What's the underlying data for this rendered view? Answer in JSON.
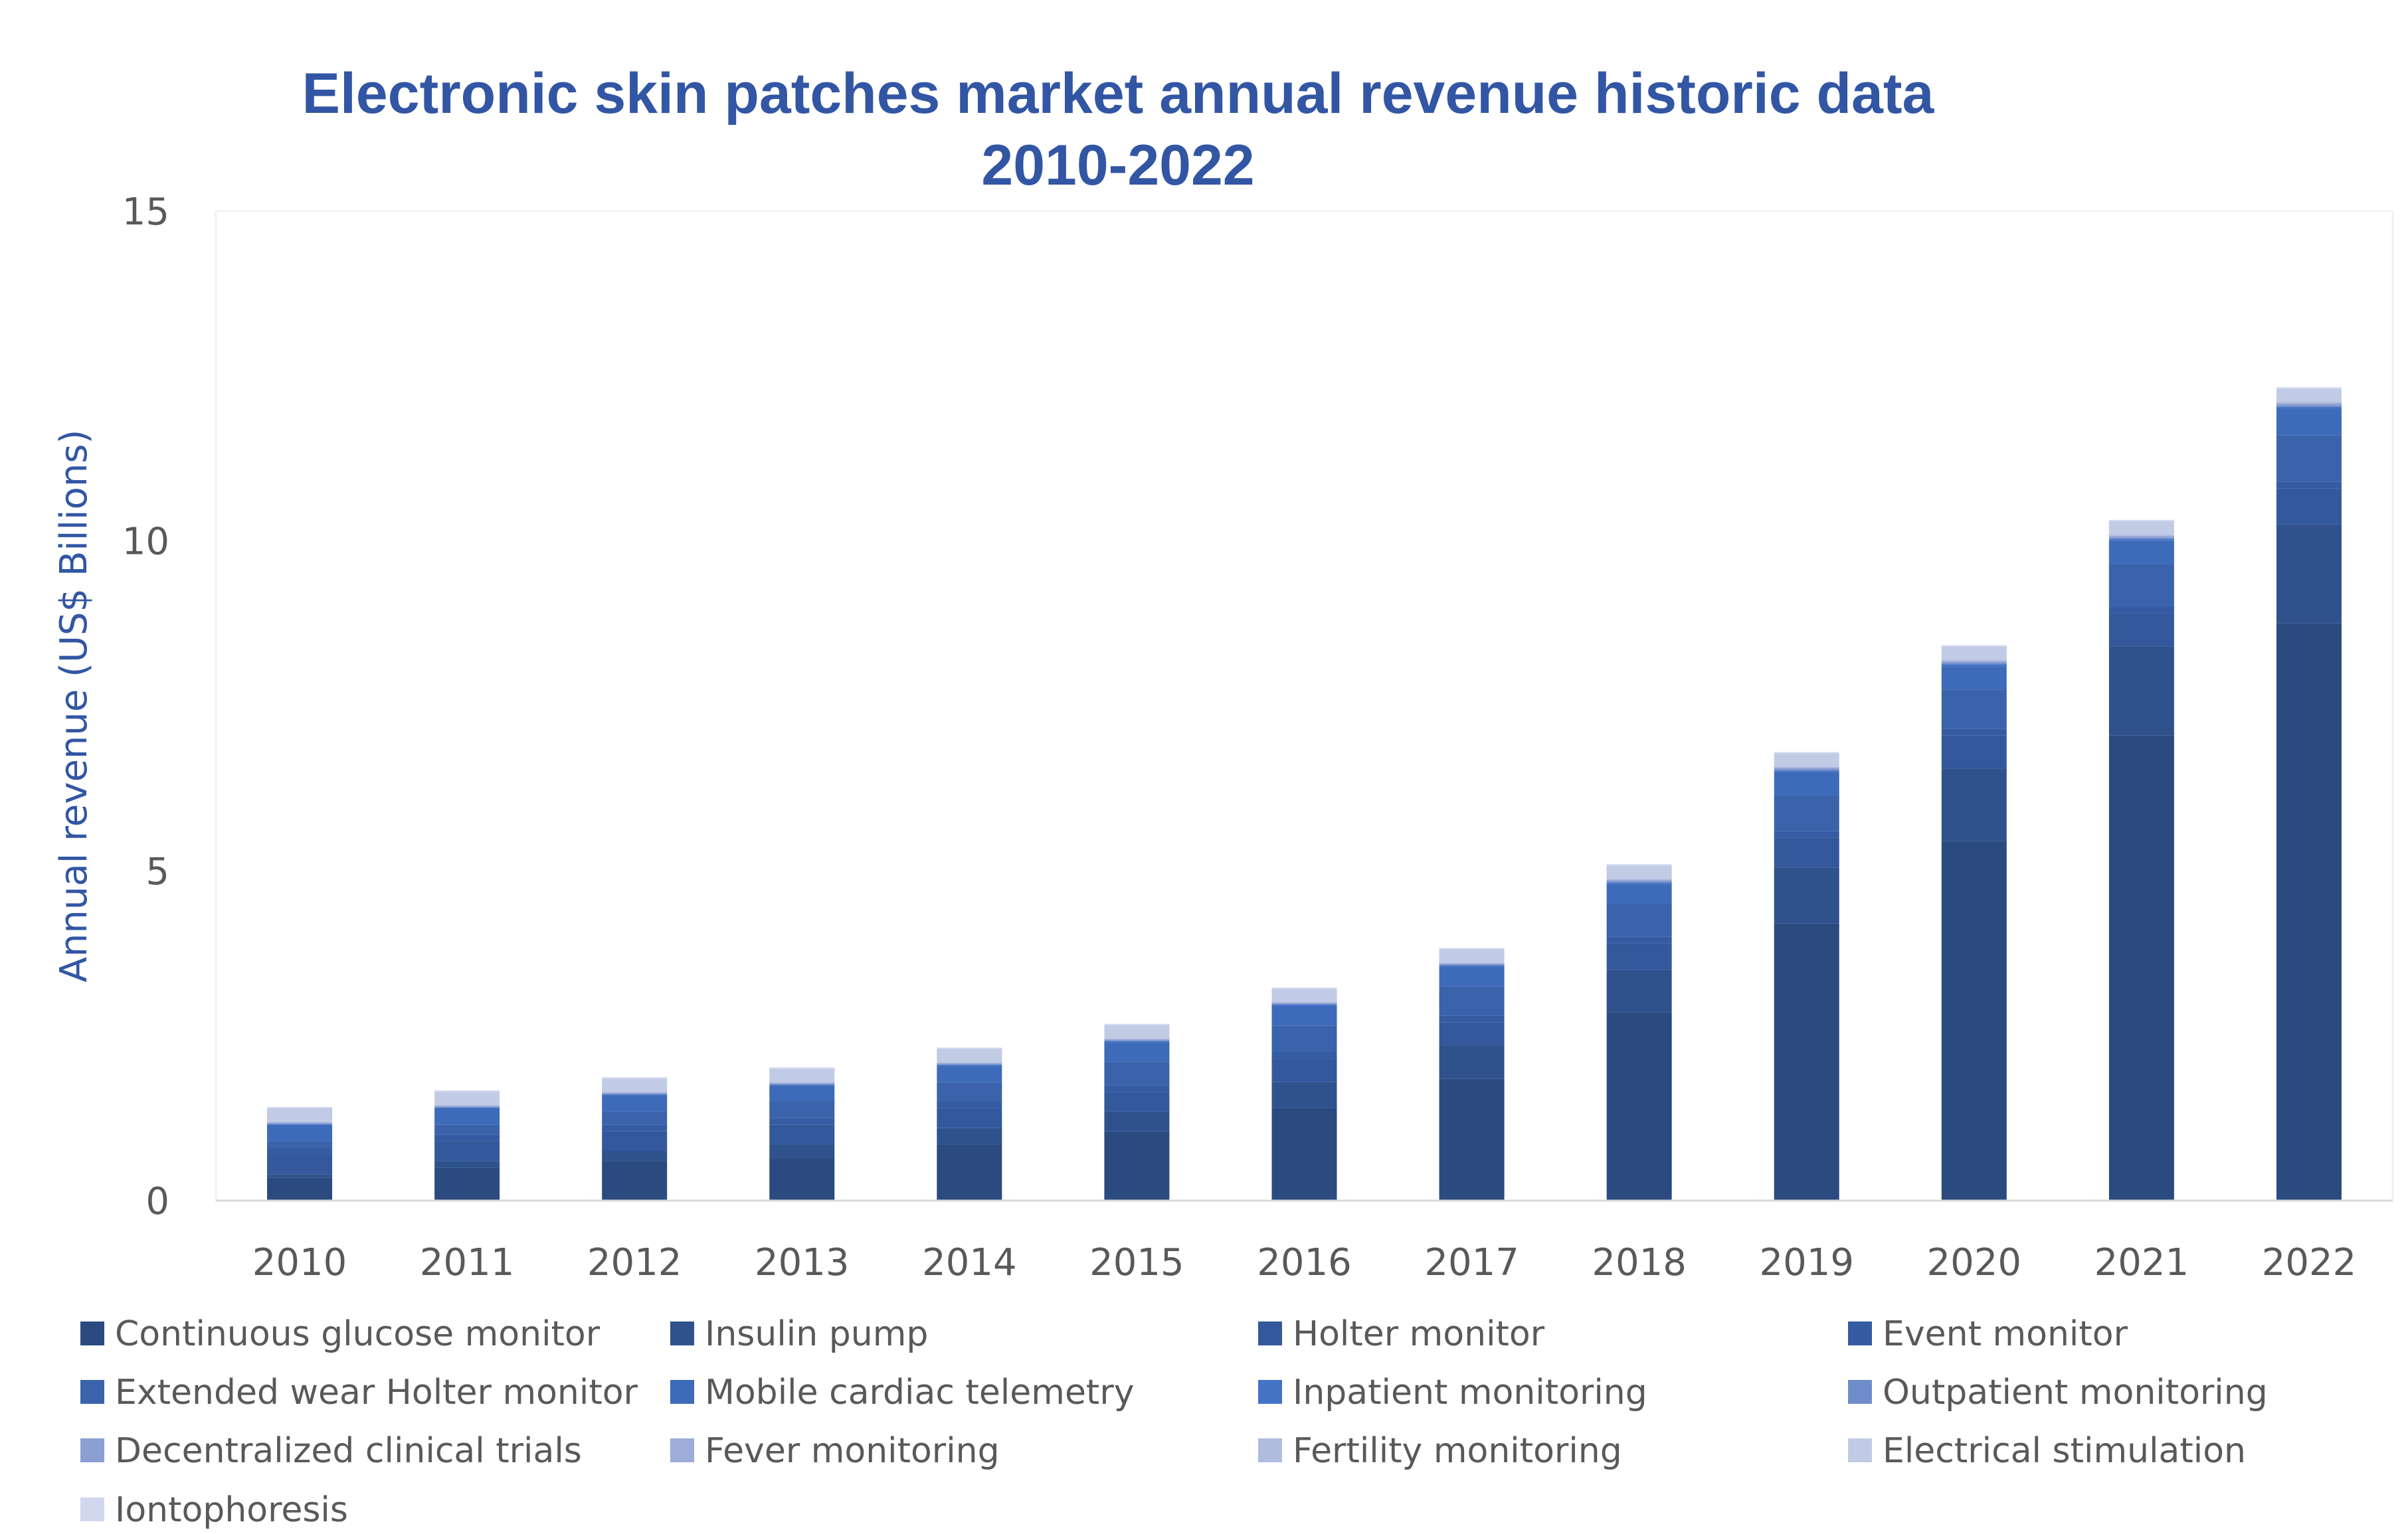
{
  "chart_data": {
    "type": "bar",
    "stacked": true,
    "title": [
      "Electronic skin patches market annual revenue historic data",
      "2010-2022"
    ],
    "xlabel": "",
    "ylabel": "Annual revenue (US$ Billions)",
    "ylim": [
      0,
      15
    ],
    "yticks": [
      "0",
      "5",
      "10",
      "15"
    ],
    "ytick_values": [
      0,
      5,
      10,
      15
    ],
    "grid": false,
    "legend_position": "bottom",
    "categories": [
      "2010",
      "2011",
      "2012",
      "2013",
      "2014",
      "2015",
      "2016",
      "2017",
      "2018",
      "2019",
      "2020",
      "2021",
      "2022"
    ],
    "series": [
      {
        "name": "Continuous glucose monitor",
        "color": "#2b4a80",
        "values": [
          0.35,
          0.5,
          0.6,
          0.65,
          0.85,
          1.05,
          1.4,
          1.85,
          2.85,
          4.2,
          5.45,
          7.05,
          8.75
        ]
      },
      {
        "name": "Insulin pump",
        "color": "#2f528d",
        "values": [
          0.05,
          0.1,
          0.15,
          0.2,
          0.25,
          0.3,
          0.4,
          0.5,
          0.65,
          0.85,
          1.1,
          1.35,
          1.5
        ]
      },
      {
        "name": "Holter monitor",
        "color": "#33589c",
        "values": [
          0.3,
          0.3,
          0.3,
          0.3,
          0.3,
          0.3,
          0.35,
          0.35,
          0.4,
          0.45,
          0.5,
          0.5,
          0.55
        ]
      },
      {
        "name": "Event monitor",
        "color": "#355ca2",
        "values": [
          0.1,
          0.1,
          0.1,
          0.1,
          0.1,
          0.1,
          0.1,
          0.1,
          0.1,
          0.1,
          0.1,
          0.1,
          0.1
        ]
      },
      {
        "name": "Extended wear Holter monitor",
        "color": "#3a63ac",
        "values": [
          0.1,
          0.15,
          0.2,
          0.25,
          0.3,
          0.35,
          0.4,
          0.45,
          0.5,
          0.55,
          0.6,
          0.65,
          0.7
        ]
      },
      {
        "name": "Mobile cardiac telemetry",
        "color": "#3d6bb9",
        "values": [
          0.25,
          0.25,
          0.25,
          0.25,
          0.25,
          0.3,
          0.3,
          0.3,
          0.3,
          0.35,
          0.35,
          0.35,
          0.4
        ]
      },
      {
        "name": "Inpatient monitoring",
        "color": "#4472c4",
        "values": [
          0.01,
          0.01,
          0.01,
          0.01,
          0.01,
          0.02,
          0.02,
          0.02,
          0.02,
          0.02,
          0.03,
          0.03,
          0.03
        ]
      },
      {
        "name": "Outpatient monitoring",
        "color": "#6f8ccb",
        "values": [
          0.01,
          0.01,
          0.01,
          0.01,
          0.01,
          0.01,
          0.01,
          0.01,
          0.02,
          0.02,
          0.02,
          0.02,
          0.02
        ]
      },
      {
        "name": "Decentralized clinical trials",
        "color": "#8b9fd2",
        "values": [
          0.01,
          0.01,
          0.01,
          0.01,
          0.01,
          0.01,
          0.01,
          0.01,
          0.02,
          0.02,
          0.02,
          0.02,
          0.03
        ]
      },
      {
        "name": "Fever monitoring",
        "color": "#9eadd8",
        "values": [
          0.01,
          0.01,
          0.01,
          0.01,
          0.01,
          0.01,
          0.01,
          0.01,
          0.01,
          0.01,
          0.01,
          0.01,
          0.01
        ]
      },
      {
        "name": "Fertility monitoring",
        "color": "#afbce0",
        "values": [
          0.01,
          0.01,
          0.01,
          0.01,
          0.01,
          0.01,
          0.01,
          0.01,
          0.01,
          0.01,
          0.02,
          0.02,
          0.02
        ]
      },
      {
        "name": "Electrical stimulation",
        "color": "#c1cbe6",
        "values": [
          0.2,
          0.2,
          0.2,
          0.2,
          0.2,
          0.2,
          0.2,
          0.2,
          0.2,
          0.2,
          0.2,
          0.2,
          0.2
        ]
      },
      {
        "name": "Iontophoresis",
        "color": "#d1d8ee",
        "values": [
          0.02,
          0.02,
          0.02,
          0.02,
          0.02,
          0.02,
          0.02,
          0.02,
          0.02,
          0.02,
          0.02,
          0.02,
          0.02
        ]
      }
    ]
  }
}
